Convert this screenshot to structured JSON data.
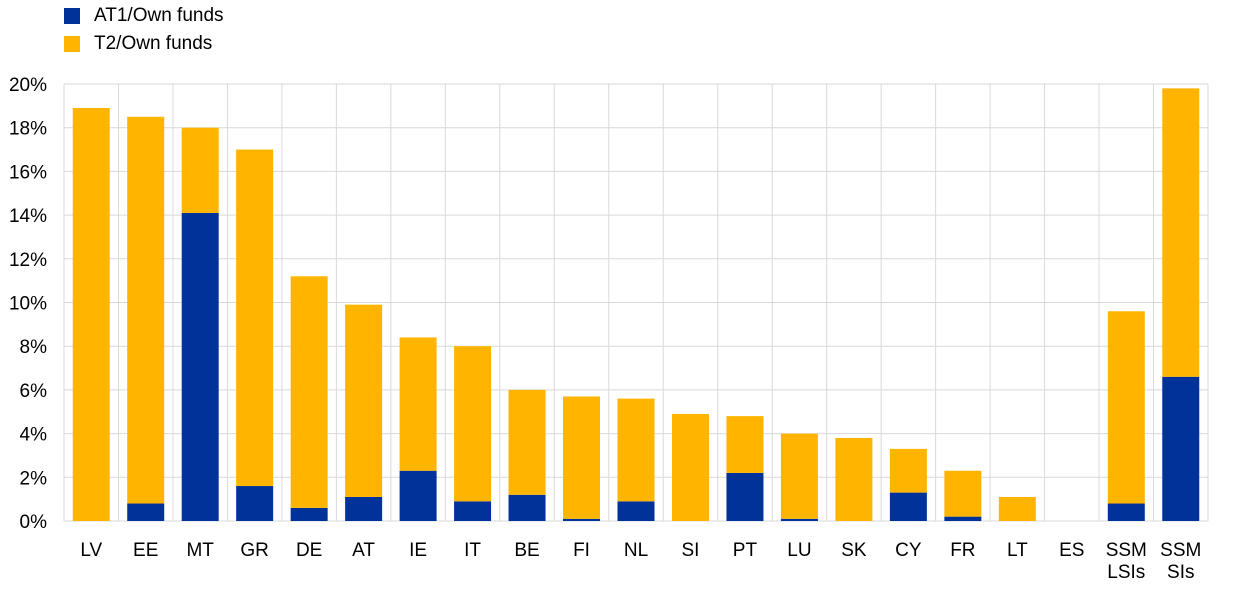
{
  "chart_data": {
    "type": "bar",
    "stacked": true,
    "categories": [
      "LV",
      "EE",
      "MT",
      "GR",
      "DE",
      "AT",
      "IE",
      "IT",
      "BE",
      "FI",
      "NL",
      "SI",
      "PT",
      "LU",
      "SK",
      "CY",
      "FR",
      "LT",
      "ES",
      "SSM LSIs",
      "SSM SIs"
    ],
    "series": [
      {
        "name": "AT1/Own funds",
        "color": "#003299",
        "values": [
          0.0,
          0.8,
          14.1,
          1.6,
          0.6,
          1.1,
          2.3,
          0.9,
          1.2,
          0.1,
          0.9,
          0.0,
          2.2,
          0.1,
          0.0,
          1.3,
          0.2,
          0.0,
          0.0,
          0.8,
          6.6
        ]
      },
      {
        "name": "T2/Own funds",
        "color": "#FFB400",
        "values": [
          18.9,
          17.7,
          3.9,
          15.4,
          10.6,
          8.8,
          6.1,
          7.1,
          4.8,
          5.6,
          4.7,
          4.9,
          2.6,
          3.9,
          3.8,
          2.0,
          2.1,
          1.1,
          0.0,
          8.8,
          13.2
        ]
      }
    ],
    "yticks": [
      "0%",
      "2%",
      "4%",
      "6%",
      "8%",
      "10%",
      "12%",
      "14%",
      "16%",
      "18%",
      "20%"
    ],
    "ylim": [
      0,
      20
    ],
    "grid": true,
    "legend_position": "top-left",
    "title": "",
    "xlabel": "",
    "ylabel": ""
  }
}
